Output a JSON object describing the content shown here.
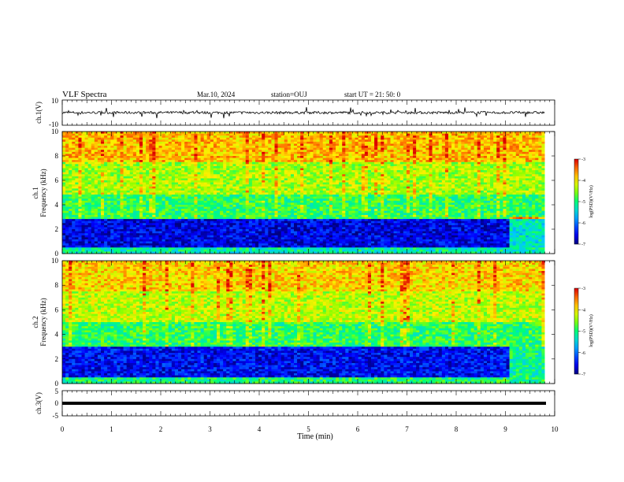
{
  "header": {
    "title": "VLF Spectra",
    "date": "Mar.10, 2024",
    "station": "station=OUJ",
    "start": "start  UT  =   21: 50: 0"
  },
  "chart_data": [
    {
      "type": "line",
      "panel": "ch1-waveform",
      "ylabel": "ch.1(V)",
      "ylim": [
        -10,
        10
      ],
      "yticks": [
        "10",
        "-10"
      ],
      "xlim": [
        0,
        10
      ],
      "baseline": 0,
      "description_values": {
        "typical_amplitude": 1.0,
        "spike_amplitude": 4.5
      },
      "color": "#000000"
    },
    {
      "type": "heatmap",
      "panel": "ch1-spectrogram",
      "ylabel": [
        "ch.1",
        "Frequency (kHz)"
      ],
      "ylim": [
        0,
        10
      ],
      "yticks": [
        "0",
        "2",
        "4",
        "6",
        "8",
        "10"
      ],
      "xlim": [
        0,
        9.8
      ],
      "colorbar": {
        "label": "log(PSD)(V²/Hz)",
        "range": [
          -7,
          -3
        ],
        "ticks": [
          "-3",
          "-4",
          "-5",
          "-6",
          "-7"
        ]
      },
      "bands": [
        {
          "f0": 0,
          "f1": 0.5,
          "level": -5.2
        },
        {
          "f0": 0.5,
          "f1": 2.8,
          "level": -6.6
        },
        {
          "f0": 2.8,
          "f1": 4.8,
          "level": -4.9
        },
        {
          "f0": 4.8,
          "f1": 7.5,
          "level": -4.4
        },
        {
          "f0": 7.5,
          "f1": 10,
          "level": -3.8
        }
      ]
    },
    {
      "type": "heatmap",
      "panel": "ch2-spectrogram",
      "ylabel": [
        "ch.2",
        "Frequency (kHz)"
      ],
      "ylim": [
        0,
        10
      ],
      "yticks": [
        "0",
        "2",
        "4",
        "6",
        "8",
        "10"
      ],
      "xlim": [
        0,
        9.8
      ],
      "colorbar": {
        "label": "log(PSD)(V²/Hz)",
        "range": [
          -7,
          -3
        ],
        "ticks": [
          "-3",
          "-4",
          "-5",
          "-6",
          "-7"
        ]
      },
      "bands": [
        {
          "f0": 0,
          "f1": 0.5,
          "level": -5.0
        },
        {
          "f0": 0.5,
          "f1": 3.0,
          "level": -6.5
        },
        {
          "f0": 3.0,
          "f1": 5.0,
          "level": -4.9
        },
        {
          "f0": 5.0,
          "f1": 7.5,
          "level": -4.3
        },
        {
          "f0": 7.5,
          "f1": 10,
          "level": -3.9
        }
      ]
    },
    {
      "type": "line",
      "panel": "ch3-waveform",
      "ylabel": "ch.3(V)",
      "ylim": [
        -5,
        5
      ],
      "yticks": [
        "5",
        "0",
        "-5"
      ],
      "xlim": [
        0,
        9.8
      ],
      "values_constant": -0.2,
      "color": "#000000"
    }
  ],
  "xaxis": {
    "label": "Time (min)",
    "ticks": [
      "0",
      "1",
      "2",
      "3",
      "4",
      "5",
      "6",
      "7",
      "8",
      "9",
      "10"
    ],
    "range": [
      0,
      10
    ]
  }
}
